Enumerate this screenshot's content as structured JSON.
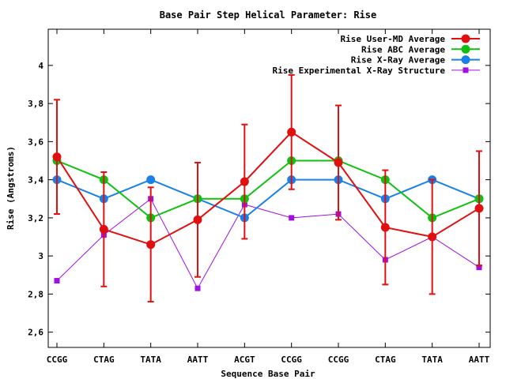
{
  "chart_data": {
    "type": "line",
    "title": "Base Pair Step Helical Parameter: Rise",
    "xlabel": "Sequence Base Pair",
    "ylabel": "Rise (Angstroms)",
    "categories": [
      "CCGG",
      "CTAG",
      "TATA",
      "AATT",
      "ACGT",
      "CCGG",
      "CCGG",
      "CTAG",
      "TATA",
      "AATT"
    ],
    "ylim": [
      2.52,
      4.19
    ],
    "yticks": [
      2.6,
      2.8,
      3,
      3.2,
      3.4,
      3.6,
      3.8,
      4
    ],
    "ytick_labels": [
      "2,6",
      "2,8",
      "3",
      "3,2",
      "3,4",
      "3,6",
      "3,8",
      "4"
    ],
    "grid": false,
    "legend_position": "top-right",
    "series": [
      {
        "name": "Rise User-MD Average",
        "color": "#e01010",
        "marker": "circle",
        "values": [
          3.52,
          3.14,
          3.06,
          3.19,
          3.39,
          3.65,
          3.49,
          3.15,
          3.1,
          3.25
        ],
        "errors": [
          0.3,
          0.3,
          0.3,
          0.3,
          0.3,
          0.3,
          0.3,
          0.3,
          0.3,
          0.3
        ]
      },
      {
        "name": "Rise ABC Average",
        "color": "#10c010",
        "marker": "circle",
        "values": [
          3.5,
          3.4,
          3.2,
          3.3,
          3.3,
          3.5,
          3.5,
          3.4,
          3.2,
          3.3
        ]
      },
      {
        "name": "Rise X-Ray Average",
        "color": "#1880e8",
        "marker": "circle",
        "values": [
          3.4,
          3.3,
          3.4,
          3.3,
          3.2,
          3.4,
          3.4,
          3.3,
          3.4,
          3.3
        ]
      },
      {
        "name": "Rise Experimental X-Ray Structure",
        "color": "#a010e0",
        "marker": "square",
        "values": [
          2.87,
          3.11,
          3.3,
          2.83,
          3.27,
          3.2,
          3.22,
          2.98,
          3.1,
          2.94
        ]
      }
    ]
  }
}
